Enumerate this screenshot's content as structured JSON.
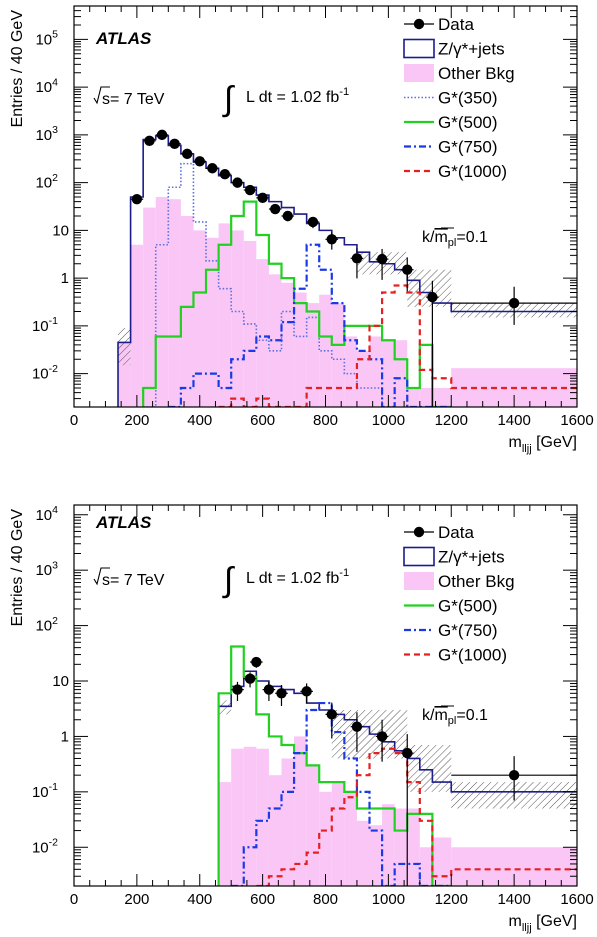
{
  "chart_data": [
    {
      "type": "step",
      "ylog": true,
      "xlim": [
        0,
        1600
      ],
      "ylim": [
        0.002,
        500000
      ],
      "xlabel": "m",
      "xlabel_sub": "lljj",
      "xlabel_unit": " [GeV]",
      "ylabel": "Entries / 40 GeV",
      "xticks": [
        "0",
        "200",
        "400",
        "600",
        "800",
        "1000",
        "1200",
        "1400",
        "1600"
      ],
      "yticks": [
        {
          "v": 0.01,
          "base": "10",
          "exp": "-2"
        },
        {
          "v": 0.1,
          "base": "10",
          "exp": "-1"
        },
        {
          "v": 1,
          "text": "1"
        },
        {
          "v": 10,
          "text": "10"
        },
        {
          "v": 100,
          "base": "10",
          "exp": "2"
        },
        {
          "v": 1000,
          "base": "10",
          "exp": "3"
        },
        {
          "v": 10000,
          "base": "10",
          "exp": "4"
        },
        {
          "v": 100000,
          "base": "10",
          "exp": "5"
        }
      ],
      "atlas_label": "ATLAS",
      "sqrt_s": "s= 7 TeV",
      "lumi": "L dt = 1.02 fb",
      "lumi_exp": "-1",
      "coupling": {
        "pre": "k/",
        "m": "m",
        "sub": "pl",
        "post": "=0.1"
      },
      "legend": [
        {
          "label": "Data",
          "style": "data"
        },
        {
          "label": "Z/γ*+jets",
          "style": "zjets"
        },
        {
          "label": "Other Bkg",
          "style": "other"
        },
        {
          "label": "G*(350)",
          "style": "g350"
        },
        {
          "label": "G*(500)",
          "style": "g500"
        },
        {
          "label": "G*(750)",
          "style": "g750"
        },
        {
          "label": "G*(1000)",
          "style": "g1000"
        }
      ],
      "series": {
        "other_bkg": {
          "edges": [
            140,
            180,
            220,
            260,
            300,
            340,
            380,
            420,
            460,
            500,
            540,
            580,
            620,
            660,
            700,
            740,
            780,
            820,
            860,
            900,
            940,
            980,
            1020,
            1060,
            1100,
            1140,
            1200,
            1600
          ],
          "values": [
            0.045,
            5,
            30,
            50,
            45,
            20,
            10,
            7,
            14,
            10,
            6,
            2.5,
            1.2,
            0.8,
            0.5,
            0.3,
            0.45,
            0.3,
            0.06,
            0.03,
            0.06,
            0.05,
            0.05,
            0.005,
            0.005,
            0.005,
            0.013
          ]
        },
        "zjets": {
          "edges": [
            140,
            180,
            220,
            260,
            300,
            340,
            380,
            420,
            460,
            500,
            540,
            580,
            620,
            660,
            700,
            740,
            780,
            820,
            860,
            900,
            940,
            980,
            1020,
            1060,
            1100,
            1140,
            1200,
            1600
          ],
          "values": [
            0.045,
            50,
            800,
            950,
            600,
            400,
            270,
            200,
            140,
            100,
            80,
            55,
            40,
            30,
            22,
            14,
            10,
            7,
            5,
            3.5,
            2.2,
            2,
            1.5,
            0.9,
            0.5,
            0.3,
            0.2,
            0.2
          ]
        },
        "g350": {
          "edges": [
            220,
            260,
            300,
            340,
            380,
            420,
            460,
            500,
            540,
            580,
            620,
            660,
            700,
            740,
            780,
            820,
            860,
            900,
            940,
            980,
            1020
          ],
          "values": [
            0.002,
            5,
            80,
            250,
            15,
            2.3,
            0.6,
            0.2,
            0.11,
            0.05,
            0.03,
            0.2,
            0.06,
            0.15,
            0.03,
            0.02,
            0.01,
            0.005,
            0.005,
            0.002
          ]
        },
        "g500": {
          "edges": [
            220,
            260,
            300,
            340,
            380,
            420,
            460,
            500,
            540,
            580,
            620,
            660,
            700,
            740,
            780,
            820,
            860,
            900,
            940,
            980,
            1020,
            1060,
            1100,
            1140,
            1200
          ],
          "values": [
            0.005,
            0.06,
            0.06,
            0.25,
            0.5,
            1.5,
            5,
            20,
            40,
            8,
            2,
            1,
            0.3,
            0.2,
            0.06,
            0.04,
            0.1,
            0.1,
            0.1,
            0.05,
            0.02,
            0.005,
            0.04,
            0.002
          ]
        },
        "g750": {
          "edges": [
            300,
            340,
            380,
            420,
            460,
            500,
            540,
            580,
            620,
            660,
            700,
            740,
            780,
            820,
            860,
            900,
            940,
            980,
            1020,
            1060,
            1100,
            1140,
            1200
          ],
          "values": [
            0.002,
            0.005,
            0.01,
            0.01,
            0.005,
            0.02,
            0.03,
            0.06,
            0.05,
            0.12,
            0.6,
            5,
            1.5,
            0.3,
            0.05,
            0.03,
            0.02,
            0.002,
            0.008,
            0.002,
            0.002,
            0.002
          ]
        },
        "g1000": {
          "edges": [
            460,
            500,
            540,
            580,
            620,
            660,
            700,
            740,
            780,
            820,
            860,
            900,
            940,
            980,
            1020,
            1060,
            1100,
            1140,
            1200,
            1600
          ],
          "values": [
            0.002,
            0.003,
            0.002,
            0.003,
            0.002,
            0.002,
            0.002,
            0.005,
            0.005,
            0.005,
            0.005,
            0.02,
            0.1,
            0.5,
            0.7,
            0.5,
            0.012,
            0.008,
            0.005
          ]
        },
        "data": [
          {
            "x": 200,
            "y": 45
          },
          {
            "x": 240,
            "y": 750
          },
          {
            "x": 280,
            "y": 1000
          },
          {
            "x": 320,
            "y": 650
          },
          {
            "x": 360,
            "y": 400
          },
          {
            "x": 400,
            "y": 280
          },
          {
            "x": 440,
            "y": 200
          },
          {
            "x": 480,
            "y": 150
          },
          {
            "x": 520,
            "y": 100
          },
          {
            "x": 560,
            "y": 70
          },
          {
            "x": 600,
            "y": 48
          },
          {
            "x": 640,
            "y": 28
          },
          {
            "x": 680,
            "y": 20
          },
          {
            "x": 760,
            "y": 15
          },
          {
            "x": 820,
            "y": 6.5
          },
          {
            "x": 900,
            "y": 2.6
          },
          {
            "x": 980,
            "y": 2.5
          },
          {
            "x": 1060,
            "y": 1.5
          },
          {
            "x": 1140,
            "y": 0.4,
            "yerr_lo_to_axis": true
          },
          {
            "x": 1400,
            "y": 0.3
          }
        ],
        "uncert_band": [
          {
            "x0": 140,
            "x1": 180,
            "lo": 0.015,
            "hi": 0.09
          },
          {
            "x0": 900,
            "x1": 1060,
            "lo": 1.2,
            "hi": 3.5
          },
          {
            "x0": 1060,
            "x1": 1200,
            "lo": 0.25,
            "hi": 1.5
          },
          {
            "x0": 1200,
            "x1": 1600,
            "lo": 0.15,
            "hi": 0.3
          }
        ]
      }
    },
    {
      "type": "step",
      "ylog": true,
      "xlim": [
        0,
        1600
      ],
      "ylim": [
        0.002,
        15000
      ],
      "xlabel": "m",
      "xlabel_sub": "lljj",
      "xlabel_unit": " [GeV]",
      "ylabel": "Entries / 40 GeV",
      "xticks": [
        "0",
        "200",
        "400",
        "600",
        "800",
        "1000",
        "1200",
        "1400",
        "1600"
      ],
      "yticks": [
        {
          "v": 0.01,
          "base": "10",
          "exp": "-2"
        },
        {
          "v": 0.1,
          "base": "10",
          "exp": "-1"
        },
        {
          "v": 1,
          "text": "1"
        },
        {
          "v": 10,
          "text": "10"
        },
        {
          "v": 100,
          "base": "10",
          "exp": "2"
        },
        {
          "v": 1000,
          "base": "10",
          "exp": "3"
        },
        {
          "v": 10000,
          "base": "10",
          "exp": "4"
        }
      ],
      "atlas_label": "ATLAS",
      "sqrt_s": "s= 7 TeV",
      "lumi": "L dt = 1.02 fb",
      "lumi_exp": "-1",
      "coupling": {
        "pre": "k/",
        "m": "m",
        "sub": "pl",
        "post": "=0.1"
      },
      "legend": [
        {
          "label": "Data",
          "style": "data"
        },
        {
          "label": "Z/γ*+jets",
          "style": "zjets"
        },
        {
          "label": "Other Bkg",
          "style": "other"
        },
        {
          "label": "G*(500)",
          "style": "g500"
        },
        {
          "label": "G*(750)",
          "style": "g750"
        },
        {
          "label": "G*(1000)",
          "style": "g1000"
        }
      ],
      "series": {
        "other_bkg": {
          "edges": [
            460,
            500,
            540,
            580,
            620,
            660,
            700,
            740,
            780,
            820,
            860,
            900,
            940,
            980,
            1020,
            1060,
            1100,
            1140,
            1200,
            1600
          ],
          "values": [
            0.15,
            0.6,
            0.65,
            0.6,
            0.2,
            0.4,
            1,
            0.3,
            0.1,
            0.15,
            0.1,
            0.03,
            0.025,
            0.06,
            0.05,
            0.05,
            0.01,
            0.015,
            0.01
          ]
        },
        "zjets": {
          "edges": [
            460,
            500,
            540,
            580,
            620,
            660,
            700,
            740,
            780,
            820,
            860,
            900,
            940,
            980,
            1020,
            1060,
            1100,
            1140,
            1200,
            1600
          ],
          "values": [
            3.5,
            8,
            15,
            10,
            8,
            7,
            6,
            4,
            3,
            2.5,
            2,
            1.5,
            1.1,
            0.8,
            0.55,
            0.4,
            0.25,
            0.15,
            0.1,
            0.1
          ]
        },
        "g500": {
          "edges": [
            460,
            500,
            540,
            580,
            620,
            660,
            700,
            740,
            780,
            820,
            860,
            900,
            940,
            980,
            1020,
            1060,
            1100,
            1140,
            1200
          ],
          "values": [
            6,
            42,
            12,
            2.5,
            1,
            0.7,
            0.5,
            0.3,
            0.15,
            0.15,
            0.1,
            0.05,
            0.05,
            0.05,
            0.02,
            0.04,
            0.04,
            0.002
          ]
        },
        "g750": {
          "edges": [
            500,
            540,
            580,
            620,
            660,
            700,
            740,
            780,
            820,
            860,
            900,
            940,
            980,
            1020,
            1060,
            1100,
            1140,
            1200
          ],
          "values": [
            0.002,
            0.01,
            0.03,
            0.05,
            0.1,
            0.5,
            3,
            4,
            1.2,
            0.4,
            0.1,
            0.02,
            0.002,
            0.005,
            0.005,
            0.002,
            0.002
          ]
        },
        "g1000": {
          "edges": [
            580,
            620,
            660,
            700,
            740,
            780,
            820,
            860,
            900,
            940,
            980,
            1020,
            1060,
            1100,
            1140,
            1200,
            1600
          ],
          "values": [
            0.002,
            0.003,
            0.004,
            0.005,
            0.008,
            0.02,
            0.05,
            0.08,
            0.2,
            0.5,
            0.6,
            0.5,
            0.15,
            0.03,
            0.003,
            0.004
          ]
        },
        "data": [
          {
            "x": 520,
            "y": 7
          },
          {
            "x": 560,
            "y": 11
          },
          {
            "x": 580,
            "y": 22
          },
          {
            "x": 620,
            "y": 7
          },
          {
            "x": 660,
            "y": 6
          },
          {
            "x": 740,
            "y": 6.5
          },
          {
            "x": 820,
            "y": 2.5
          },
          {
            "x": 900,
            "y": 1.5
          },
          {
            "x": 980,
            "y": 1
          },
          {
            "x": 1060,
            "y": 0.5,
            "yerr_lo_to_axis": true
          },
          {
            "x": 1400,
            "y": 0.2
          }
        ],
        "uncert_band": [
          {
            "x0": 460,
            "x1": 500,
            "lo": 2.5,
            "hi": 4.5
          },
          {
            "x0": 820,
            "x1": 1060,
            "lo": 0.4,
            "hi": 3
          },
          {
            "x0": 1060,
            "x1": 1200,
            "lo": 0.1,
            "hi": 0.7
          },
          {
            "x0": 1200,
            "x1": 1600,
            "lo": 0.05,
            "hi": 0.15
          }
        ]
      }
    }
  ]
}
